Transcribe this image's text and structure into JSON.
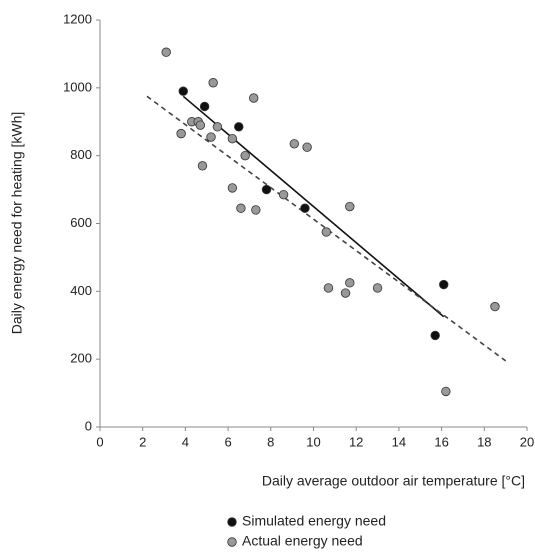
{
  "chart_data": {
    "type": "scatter",
    "x_label": "Daily average outdoor air temperature [°C]",
    "y_label": "Daily energy need for heating [kWh]",
    "xlim": [
      0,
      20
    ],
    "xticks": [
      0,
      2,
      4,
      6,
      8,
      10,
      12,
      14,
      16,
      18,
      20
    ],
    "ylim": [
      0,
      1200
    ],
    "yticks": [
      0,
      200,
      400,
      600,
      800,
      1000,
      1200
    ],
    "grid": false,
    "legend": "bottom",
    "series": [
      {
        "name": "Simulated energy need",
        "color": "#111111",
        "x": [
          3.9,
          4.9,
          6.5,
          7.8,
          9.6,
          15.7,
          16.1
        ],
        "values": [
          990,
          945,
          885,
          700,
          645,
          270,
          420
        ]
      },
      {
        "name": "Actual energy need",
        "color": "#999999",
        "x": [
          3.1,
          3.8,
          4.3,
          4.6,
          4.7,
          4.8,
          5.2,
          5.3,
          5.5,
          6.2,
          6.2,
          6.6,
          6.8,
          7.2,
          7.3,
          8.6,
          9.1,
          9.7,
          10.6,
          10.7,
          11.5,
          11.7,
          11.7,
          13.0,
          16.2,
          18.5
        ],
        "values": [
          1105,
          865,
          900,
          900,
          890,
          770,
          855,
          1015,
          885,
          850,
          705,
          645,
          800,
          970,
          640,
          685,
          835,
          825,
          575,
          410,
          395,
          425,
          650,
          410,
          105,
          355
        ]
      }
    ],
    "trendlines": [
      {
        "color": "#111111",
        "dash": false,
        "x": [
          3.9,
          16.1
        ],
        "values": [
          975,
          325
        ]
      },
      {
        "color": "#444444",
        "dash": true,
        "x": [
          2.2,
          19.0
        ],
        "values": [
          975,
          195
        ]
      }
    ]
  }
}
